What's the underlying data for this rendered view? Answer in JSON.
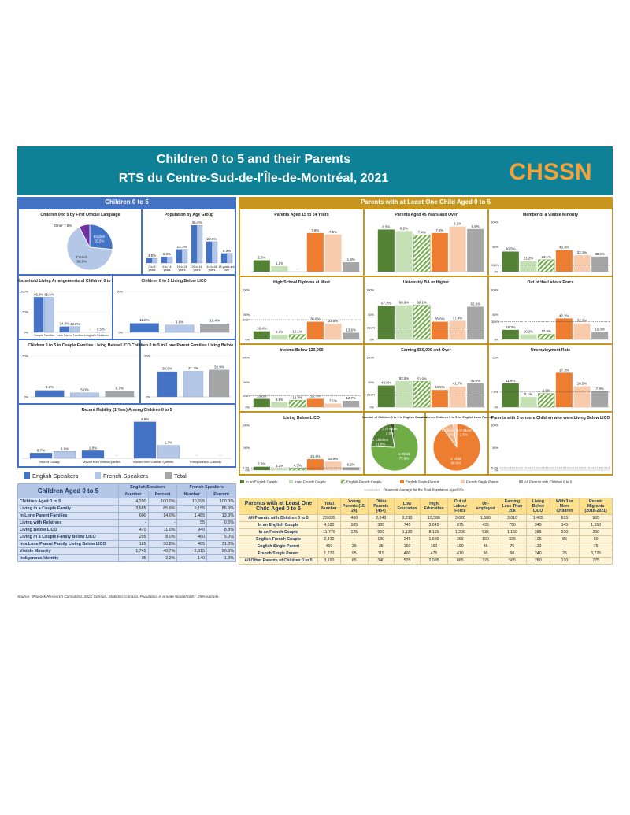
{
  "header": {
    "title_line1": "Children 0 to 5 and their Parents",
    "title_line2": "RTS du Centre-Sud-de-l'Île-de-Montréal, 2021",
    "logo_text": "CHSSN"
  },
  "colors": {
    "teal": "#0e8196",
    "left_panel": "#4472c4",
    "right_panel": "#c8961e",
    "english": "#4472c4",
    "french": "#b4c7e7",
    "total": "#a6a6a6",
    "in_english_couple": "#548235",
    "in_french_couple": "#c5e0b4",
    "english_french_couple": "#70ad47",
    "english_single_parent": "#ed7d31",
    "french_single_parent": "#f8cbad",
    "all_parents": "#a6a6a6"
  },
  "left_section_title": "Children 0 to 5",
  "right_section_title": "Parents with at Least One Child Aged 0 to 5",
  "legend_left": [
    "English Speakers",
    "French Speakers",
    "Total"
  ],
  "legend_right": [
    "In an English Couple",
    "In an French Couple",
    "English-French Couple",
    "English Single Parent",
    "French Single Parent",
    "All Parents with Children 0 to 5"
  ],
  "legend_right_note": "Provincial Average for the Total Population Aged 15+",
  "chart_data": [
    {
      "id": "pie_language",
      "type": "pie",
      "title": "Children 0 to 5 by First Official Language",
      "slices": [
        {
          "label": "English",
          "value": 26.5,
          "text": "English\n26.5%"
        },
        {
          "label": "French",
          "value": 66.0,
          "text": "French\n66.0%"
        },
        {
          "label": "Other",
          "value": 7.6,
          "text": "Other 7.6%"
        }
      ]
    },
    {
      "id": "age_group",
      "type": "bar",
      "title": "Population by Age Group",
      "categories": [
        "0 to 5 years",
        "6 to 14 years",
        "15 to 24 years",
        "25 to 44 years",
        "45 to 64 years",
        "65 years and over"
      ],
      "series": [
        {
          "name": "English Speakers",
          "values": [
            4.5,
            6.0,
            13.1,
            36.4,
            20.6,
            9.3
          ]
        },
        {
          "name": "French Speakers",
          "values": [
            4.5,
            6.0,
            13.1,
            36.4,
            20.6,
            9.3
          ]
        }
      ],
      "labels": [
        "4.5%",
        "6.0%",
        "13.1%",
        "36.4%",
        "20.6%",
        "9.3%"
      ]
    },
    {
      "id": "household",
      "type": "bar",
      "title": "Household Living Arrangements of Children 0 to 5",
      "categories": [
        "Couple Families",
        "Lone Parent Families",
        "Living with Relatives"
      ],
      "series": [
        {
          "name": "English Speakers",
          "values": [
            85.9,
            14.0,
            0
          ]
        },
        {
          "name": "French Speakers",
          "values": [
            85.6,
            13.9,
            0.5
          ]
        }
      ],
      "labels": [
        [
          "85.9%",
          "85.6%"
        ],
        [
          "14.0%",
          "13.9%"
        ],
        [
          "-",
          "0.5%"
        ]
      ],
      "ylim": [
        0,
        100
      ],
      "yticks": [
        "0%",
        "50%",
        "100%"
      ]
    },
    {
      "id": "lico",
      "type": "bar",
      "title": "Children 0 to 5 Living Below LICO",
      "categories": [
        "English Speakers",
        "French Speakers",
        "Total"
      ],
      "values": [
        11.0,
        8.8,
        10.4
      ],
      "labels": [
        "11.0%",
        "8.8%",
        "10.4%"
      ],
      "ylim": [
        0,
        50
      ],
      "yticks": [
        "0%",
        "50%"
      ]
    },
    {
      "id": "couple_lico",
      "type": "bar",
      "title": "Children 0 to 5 in Couple Families Living Below LICO",
      "categories": [
        "English Speakers",
        "French Speakers",
        "Total"
      ],
      "values": [
        8.0,
        5.0,
        6.7
      ],
      "labels": [
        "8.0%",
        "5.0%",
        "6.7%"
      ],
      "ylim": [
        0,
        50
      ],
      "yticks": [
        "0%",
        "50%"
      ]
    },
    {
      "id": "lone_lico",
      "type": "bar",
      "title": "Children 0 to 5 in Lone Parent Families Living Below LICO",
      "categories": [
        "English Speakers",
        "French Speakers",
        "Total"
      ],
      "values": [
        30.8,
        31.3,
        32.9
      ],
      "labels": [
        "30.8%",
        "31.3%",
        "32.9%"
      ],
      "ylim": [
        0,
        50
      ],
      "yticks": [
        "0%",
        "50%"
      ]
    },
    {
      "id": "mobility",
      "type": "bar",
      "title": "Recent Mobility (1 Year) Among Children 0 to 5",
      "categories": [
        "Moved Locally",
        "Moved from Within Quebec",
        "Moved from Outside Quebec",
        "Immigrated to Canada"
      ],
      "series": [
        {
          "name": "English Speakers",
          "values": [
            0.7,
            1.0,
            4.8,
            0
          ]
        },
        {
          "name": "French Speakers",
          "values": [
            0.9,
            0,
            1.7,
            0
          ]
        }
      ],
      "labels": [
        [
          "0.7%",
          "0.9%"
        ],
        [
          "1.0%",
          "-"
        ],
        [
          "4.8%",
          "1.7%"
        ],
        [
          "-",
          "-"
        ]
      ]
    },
    {
      "id": "p_age15_24",
      "type": "bar",
      "title": "Parents Aged 15 to 24 Years",
      "values": [
        2.3,
        1.1,
        0,
        7.8,
        7.5,
        1.9
      ],
      "labels": [
        "2.3%",
        "1.1%",
        "-",
        "7.8%",
        "7.5%",
        "1.9%"
      ],
      "avg": null,
      "yticks": []
    },
    {
      "id": "p_age45",
      "type": "bar",
      "title": "Parents Aged 45 Years and Over",
      "values": [
        8.5,
        8.2,
        7.4,
        7.8,
        9.1,
        8.6
      ],
      "labels": [
        "8.5%",
        "8.2%",
        "7.4%",
        "7.8%",
        "9.1%",
        "8.6%"
      ],
      "avg": null,
      "yticks": []
    },
    {
      "id": "p_minority",
      "type": "bar",
      "title": "Member of a Visible Minority",
      "values": [
        40.5,
        21.2,
        24.1,
        43.3,
        33.1,
        30.5
      ],
      "labels": [
        "40.5%",
        "21.2%",
        "24.1%",
        "43.3%",
        "33.1%",
        "30.5%"
      ],
      "avg": 13.0,
      "avg_label": "13.0%",
      "ylim": [
        0,
        100
      ],
      "yticks": [
        "0%",
        "50%",
        "100%"
      ]
    },
    {
      "id": "p_hs",
      "type": "bar",
      "title": "High School Diploma at Most",
      "values": [
        16.4,
        9.6,
        10.1,
        35.6,
        31.5,
        13.6
      ],
      "labels": [
        "16.4%",
        "9.6%",
        "10.1%",
        "35.6%",
        "31.5%",
        "13.6%"
      ],
      "avg": 39.6,
      "avg_label": "39.6%",
      "ylim": [
        0,
        100
      ],
      "yticks": [
        "0%",
        "50%",
        "100%"
      ]
    },
    {
      "id": "p_univ",
      "type": "bar",
      "title": "University BA or Higher",
      "values": [
        67.2,
        68.9,
        69.1,
        35.6,
        37.4,
        65.9
      ],
      "labels": [
        "67.2%",
        "68.9%",
        "69.1%",
        "35.6%",
        "37.4%",
        "65.9%"
      ],
      "avg": 23.3,
      "avg_label": "23.3%",
      "ylim": [
        0,
        100
      ],
      "yticks": [
        "0%",
        "50%",
        "100%"
      ]
    },
    {
      "id": "p_olf",
      "type": "bar",
      "title": "Out of the Labour Force",
      "values": [
        19.3,
        10.2,
        10.9,
        42.2,
        32.3,
        15.3
      ],
      "labels": [
        "19.3%",
        "10.2%",
        "10.9%",
        "42.2%",
        "32.3%",
        "15.3%"
      ],
      "avg": 35.9,
      "avg_label": "35.9%",
      "ylim": [
        0,
        100
      ],
      "yticks": [
        "0%",
        "50%",
        "100%"
      ]
    },
    {
      "id": "p_inc20",
      "type": "bar",
      "title": "Income Below $20,000",
      "values": [
        16.6,
        9.9,
        13.8,
        16.7,
        7.1,
        12.7
      ],
      "labels": [
        "16.6%",
        "9.9%",
        "13.8%",
        "16.7%",
        "7.1%",
        "12.7%"
      ],
      "avg": 22.6,
      "avg_label": "22.6%",
      "ylim": [
        0,
        100
      ],
      "yticks": [
        "0%",
        "50%",
        "100%"
      ]
    },
    {
      "id": "p_earn50",
      "type": "bar",
      "title": "Earning $50,000 and Over",
      "values": [
        43.5,
        52.5,
        51.9,
        34.6,
        41.7,
        48.0
      ],
      "labels": [
        "43.5%",
        "52.5%",
        "51.9%",
        "34.6%",
        "41.7%",
        "48.0%"
      ],
      "avg": 25.0,
      "avg_label": "25.0%",
      "ylim": [
        0,
        100
      ],
      "yticks": [
        "0%",
        "50%",
        "100%"
      ]
    },
    {
      "id": "p_unemp",
      "type": "bar",
      "title": "Unemployment Rate",
      "values": [
        11.9,
        5.1,
        6.9,
        17.3,
        10.5,
        7.9
      ],
      "labels": [
        "11.9%",
        "5.1%",
        "6.9%",
        "17.3%",
        "10.5%",
        "7.9%"
      ],
      "avg": 7.6,
      "avg_label": "7.6%",
      "ylim": [
        0,
        25
      ],
      "yticks": [
        "0%",
        "25%"
      ]
    },
    {
      "id": "p_lico",
      "type": "bar",
      "title": "Living Below LICO",
      "values": [
        7.6,
        3.3,
        4.3,
        24.4,
        18.9,
        6.2
      ],
      "labels": [
        "7.6%",
        "3.3%",
        "4.3%",
        "24.4%",
        "18.9%",
        "6.2%"
      ],
      "avg": 5.1,
      "avg_label": "5.1%",
      "ylim": [
        0,
        100
      ],
      "yticks": [
        "0%",
        "50%",
        "100%"
      ]
    },
    {
      "id": "pie_couples",
      "type": "pie",
      "title": "Number of Children 0 to 5 in English Couples",
      "slices": [
        {
          "label": "1 Child",
          "value": 75.6,
          "text": "1 Child\n75.6%"
        },
        {
          "label": "2 Children",
          "value": 21.8,
          "text": "2 Children\n21.8%"
        },
        {
          "label": "3 or More",
          "value": 2.6,
          "text": "3 or More\n2.6%"
        }
      ]
    },
    {
      "id": "pie_lone",
      "type": "pie",
      "title": "Number of Children 0 to 5 for English Lone Parents",
      "slices": [
        {
          "label": "1 Child",
          "value": 90.0,
          "text": "1 Child\n90.0%"
        },
        {
          "label": "2 Children",
          "value": 7.5,
          "text": "2 Children\n7.5%"
        },
        {
          "label": "3 or More",
          "value": 2.5,
          "text": "3 or More\n2.5%"
        }
      ]
    },
    {
      "id": "p_3kids",
      "type": "bar",
      "title": "Parents with 3 or more Children who were Living Below LICO",
      "values": [
        0,
        0,
        0,
        0,
        0,
        0
      ],
      "labels": [
        "-",
        "-",
        "-",
        "-",
        "-",
        "-"
      ],
      "avg": 5.3,
      "avg_label": "5.3%",
      "ylim": [
        0,
        100
      ],
      "yticks": [
        "0%",
        "50%",
        "100%"
      ]
    }
  ],
  "left_table": {
    "title": "Children Aged 0 to 5",
    "groups": [
      "English Speakers",
      "French Speakers"
    ],
    "cols": [
      "Number",
      "Percent",
      "Number",
      "Percent"
    ],
    "rows": [
      {
        "label": "Children Aged 0 to 5",
        "sub": false,
        "cells": [
          "4,290",
          "100.0%",
          "10,695",
          "100.0%"
        ]
      },
      {
        "label": "Living in a Couple Family",
        "sub": true,
        "cells": [
          "3,685",
          "85.9%",
          "9,155",
          "85.6%"
        ]
      },
      {
        "label": "In Lone Parent Families",
        "sub": true,
        "cells": [
          "600",
          "14.0%",
          "1,485",
          "13.9%"
        ]
      },
      {
        "label": "Living with Relatives",
        "sub": true,
        "cells": [
          "-",
          "-",
          "55",
          "0.5%"
        ]
      },
      {
        "label": "Living Below LICO",
        "sub": false,
        "cells": [
          "470",
          "11.0%",
          "940",
          "8.8%"
        ]
      },
      {
        "label": "Living in a Couple Family Below LICO",
        "sub": true,
        "cells": [
          "295",
          "8.0%",
          "460",
          "5.0%"
        ]
      },
      {
        "label": "In a Lone Parent Family Living Below LICO",
        "sub": true,
        "cells": [
          "185",
          "30.8%",
          "465",
          "31.3%"
        ]
      },
      {
        "label": "Visible Minority",
        "sub": false,
        "cells": [
          "1,745",
          "40.7%",
          "2,815",
          "26.3%"
        ]
      },
      {
        "label": "Indigenous Identity",
        "sub": false,
        "cells": [
          "95",
          "2.2%",
          "140",
          "1.3%"
        ]
      }
    ]
  },
  "right_table": {
    "title": "Parents with at Least One Child Aged 0 to 5",
    "cols": [
      "Total Number",
      "Young Parents (15-24)",
      "Older Parents (45+)",
      "Low Education",
      "High Education",
      "Out of Labour Force",
      "Un-employed",
      "Earning Less Than 20k",
      "Living Below LICO",
      "With 3 or More Children",
      "Recent Migrants (2016-2021)"
    ],
    "rows": [
      {
        "label": "All Parents with Children 0 to 5",
        "sub": false,
        "cells": [
          "23,635",
          "460",
          "2,040",
          "3,210",
          "15,580",
          "3,620",
          "1,580",
          "3,010",
          "1,465",
          "615",
          "965"
        ]
      },
      {
        "label": "In an English Couple",
        "sub": true,
        "cells": [
          "4,530",
          "105",
          "385",
          "745",
          "3,045",
          "875",
          "435",
          "750",
          "345",
          "145",
          "1,550"
        ]
      },
      {
        "label": "In an French Couple",
        "sub": true,
        "cells": [
          "11,770",
          "125",
          "960",
          "1,130",
          "8,115",
          "1,200",
          "535",
          "1,160",
          "385",
          "230",
          "290"
        ]
      },
      {
        "label": "English-French Couple",
        "sub": true,
        "cells": [
          "2,430",
          "-",
          "180",
          "245",
          "1,680",
          "265",
          "150",
          "335",
          "105",
          "85",
          "60"
        ]
      },
      {
        "label": "English Single Parent",
        "sub": true,
        "cells": [
          "450",
          "35",
          "35",
          "160",
          "160",
          "190",
          "45",
          "75",
          "110",
          "-",
          "75"
        ]
      },
      {
        "label": "French Single Parent",
        "sub": true,
        "cells": [
          "1,270",
          "95",
          "115",
          "400",
          "475",
          "410",
          "90",
          "90",
          "240",
          "25",
          "3,725"
        ]
      },
      {
        "label": "All Other Parents of Children 0 to 5",
        "sub": false,
        "cells": [
          "3,190",
          "85",
          "340",
          "525",
          "2,095",
          "685",
          "325",
          "585",
          "280",
          "120",
          "775"
        ]
      }
    ]
  },
  "source_note": "Source: JPocock Research Consulting, 2021 Census, Statistics Canada. Population in private households - 25% sample."
}
